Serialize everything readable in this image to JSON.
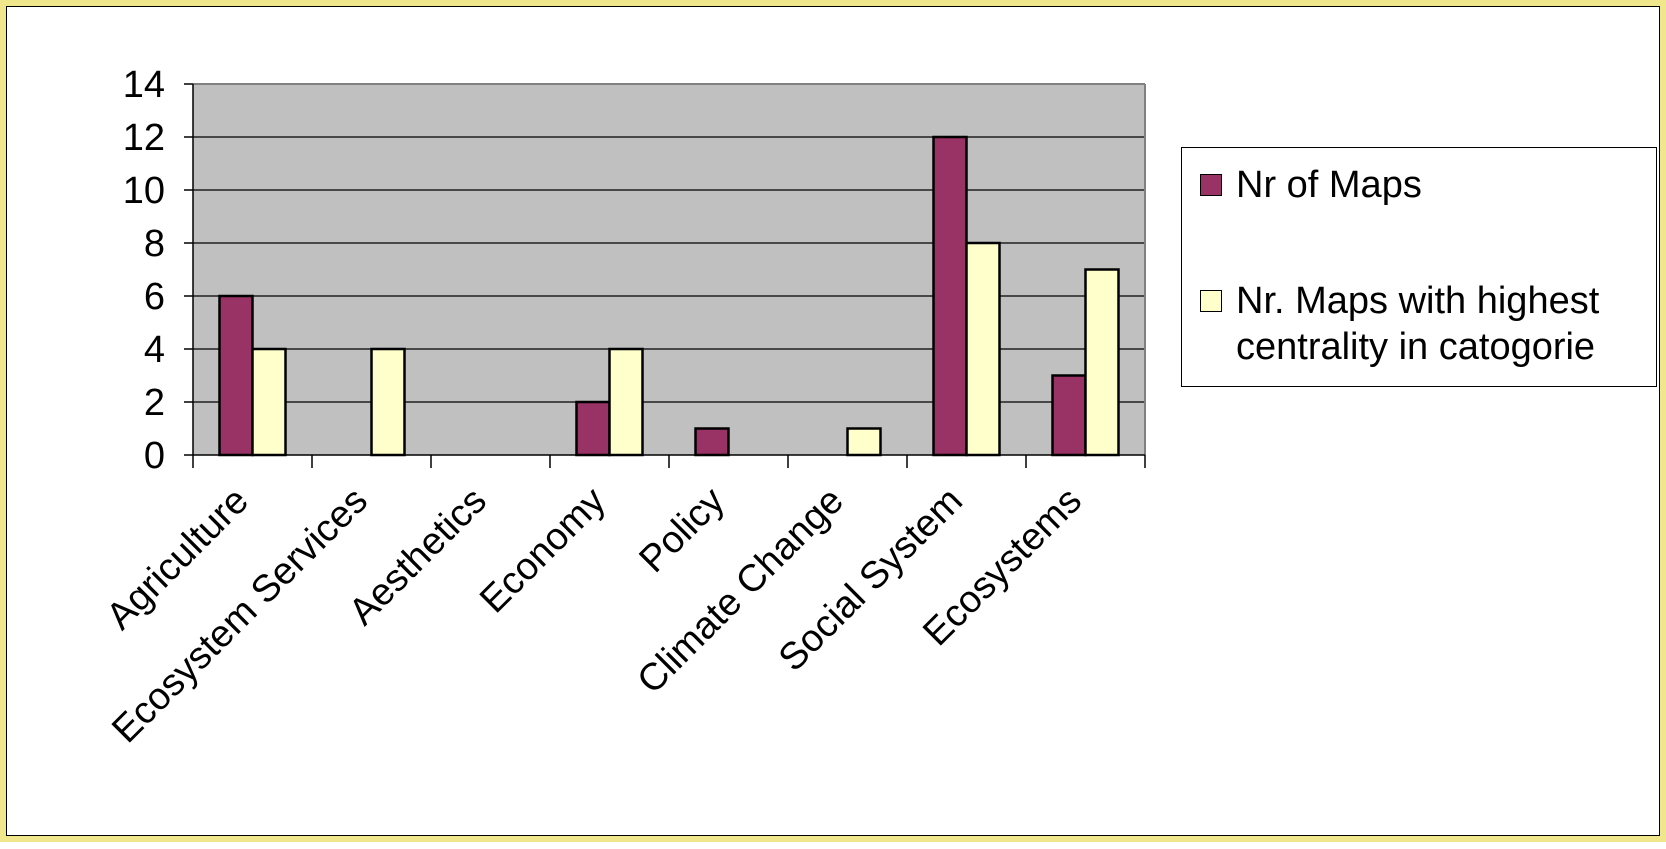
{
  "chart_data": {
    "type": "bar",
    "categories": [
      "Agriculture",
      "Ecosystem Services",
      "Aesthetics",
      "Economy",
      "Policy",
      "Climate Change",
      "Social System",
      "Ecosystems"
    ],
    "series": [
      {
        "name": "Nr of Maps",
        "values": [
          6,
          0,
          0,
          2,
          1,
          0,
          12,
          3
        ],
        "color": "#993366"
      },
      {
        "name": "Nr. Maps with highest centrality in catogorie",
        "values": [
          4,
          4,
          0,
          4,
          0,
          1,
          8,
          7
        ],
        "color": "#FFFFCC"
      }
    ],
    "yticks": [
      "0",
      "2",
      "4",
      "6",
      "8",
      "10",
      "12",
      "14"
    ],
    "ylim": [
      0,
      14
    ],
    "grid": true,
    "plot_background": "#C0C0C0",
    "frame_color": "#F0E68C",
    "legend_position": "right",
    "title": "",
    "xlabel": "",
    "ylabel": ""
  },
  "legend": {
    "items": [
      {
        "label": "Nr of Maps",
        "color": "#993366"
      },
      {
        "label": "Nr. Maps with highest centrality in catogorie",
        "color": "#FFFFCC"
      }
    ]
  }
}
